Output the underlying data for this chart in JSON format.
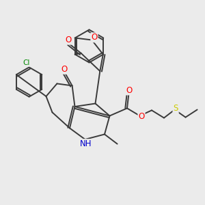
{
  "bg_color": "#ebebeb",
  "bond_color": "#3a3a3a",
  "bond_width": 1.4,
  "atom_colors": {
    "O": "#ff0000",
    "N": "#0000cc",
    "Cl": "#008800",
    "S": "#cccc00",
    "C": "#3a3a3a"
  },
  "font_size": 8.5,
  "figsize": [
    3.0,
    3.0
  ],
  "dpi": 100
}
